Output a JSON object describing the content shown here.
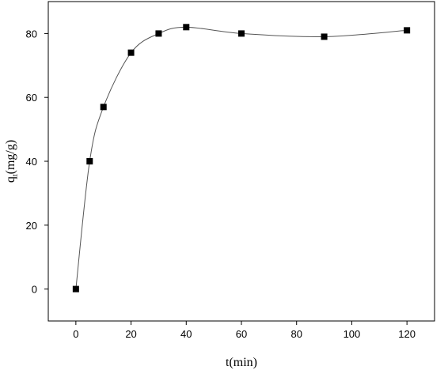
{
  "chart_data": {
    "type": "scatter",
    "xlabel": "t(min)",
    "ylabel_main": "q",
    "ylabel_sub": "t",
    "ylabel_rest": "(mg/g)",
    "xlim": [
      -10,
      130
    ],
    "ylim": [
      -10,
      90
    ],
    "xticks": [
      0,
      20,
      40,
      60,
      80,
      100,
      120
    ],
    "yticks": [
      0,
      20,
      40,
      60,
      80
    ],
    "grid": false,
    "marker": "square",
    "fitted_curve": true,
    "series": [
      {
        "x": [
          0,
          5,
          10,
          20,
          30,
          40,
          60,
          90,
          120
        ],
        "y": [
          0,
          40,
          57,
          74,
          80,
          82,
          80,
          79,
          81
        ]
      }
    ],
    "colors": {
      "marker": "#000000",
      "curve": "#555555",
      "axis": "#000000"
    }
  }
}
